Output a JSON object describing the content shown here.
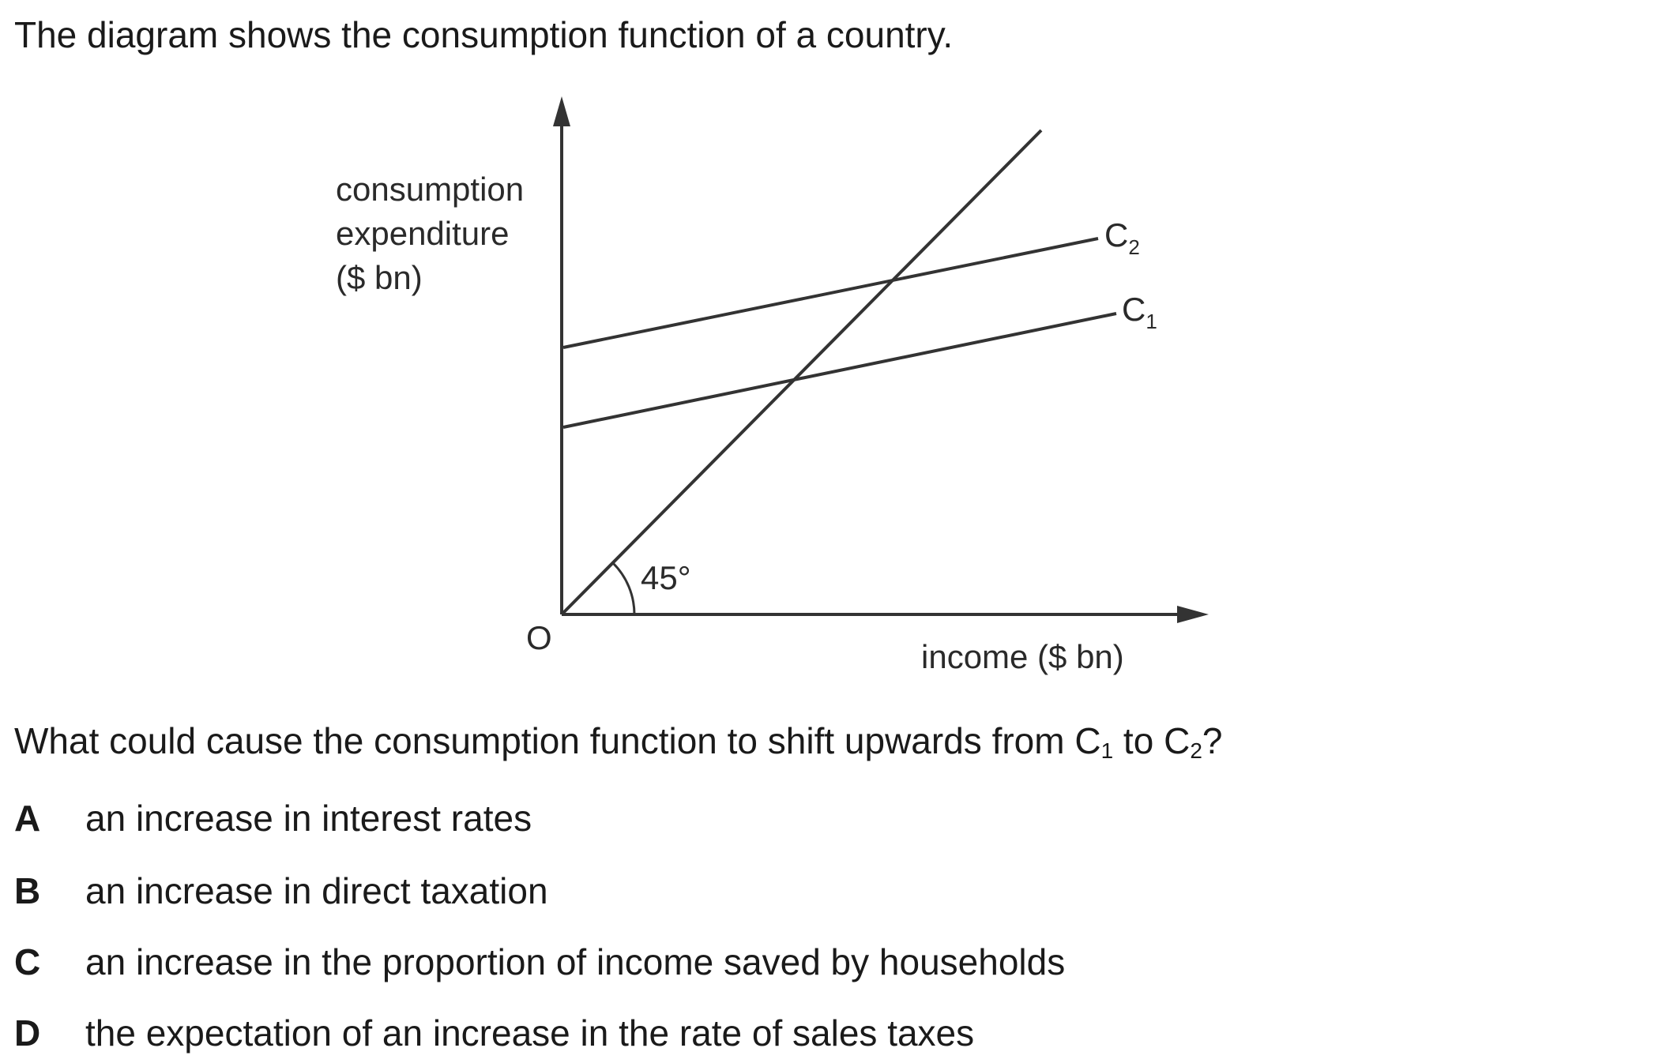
{
  "intro_text": "The diagram shows the consumption function of a country.",
  "diagram": {
    "y_axis_label_lines": [
      "consumption",
      "expenditure",
      "($ bn)"
    ],
    "x_axis_label": "income ($ bn)",
    "origin_label": "O",
    "angle_label": "45°",
    "line_labels": {
      "c2": {
        "letter": "C",
        "subscript": "2"
      },
      "c1": {
        "letter": "C",
        "subscript": "1"
      }
    },
    "line_color": "#333333"
  },
  "question": {
    "prefix": "What could cause the consumption function to shift upwards from C",
    "sub1": "1",
    "middle": " to C",
    "sub2": "2",
    "suffix": "?"
  },
  "options": [
    {
      "letter": "A",
      "text": "an increase in interest rates"
    },
    {
      "letter": "B",
      "text": "an increase in direct taxation"
    },
    {
      "letter": "C",
      "text": "an increase in the proportion of income saved by households"
    },
    {
      "letter": "D",
      "text": "the expectation of an increase in the rate of sales taxes"
    }
  ]
}
